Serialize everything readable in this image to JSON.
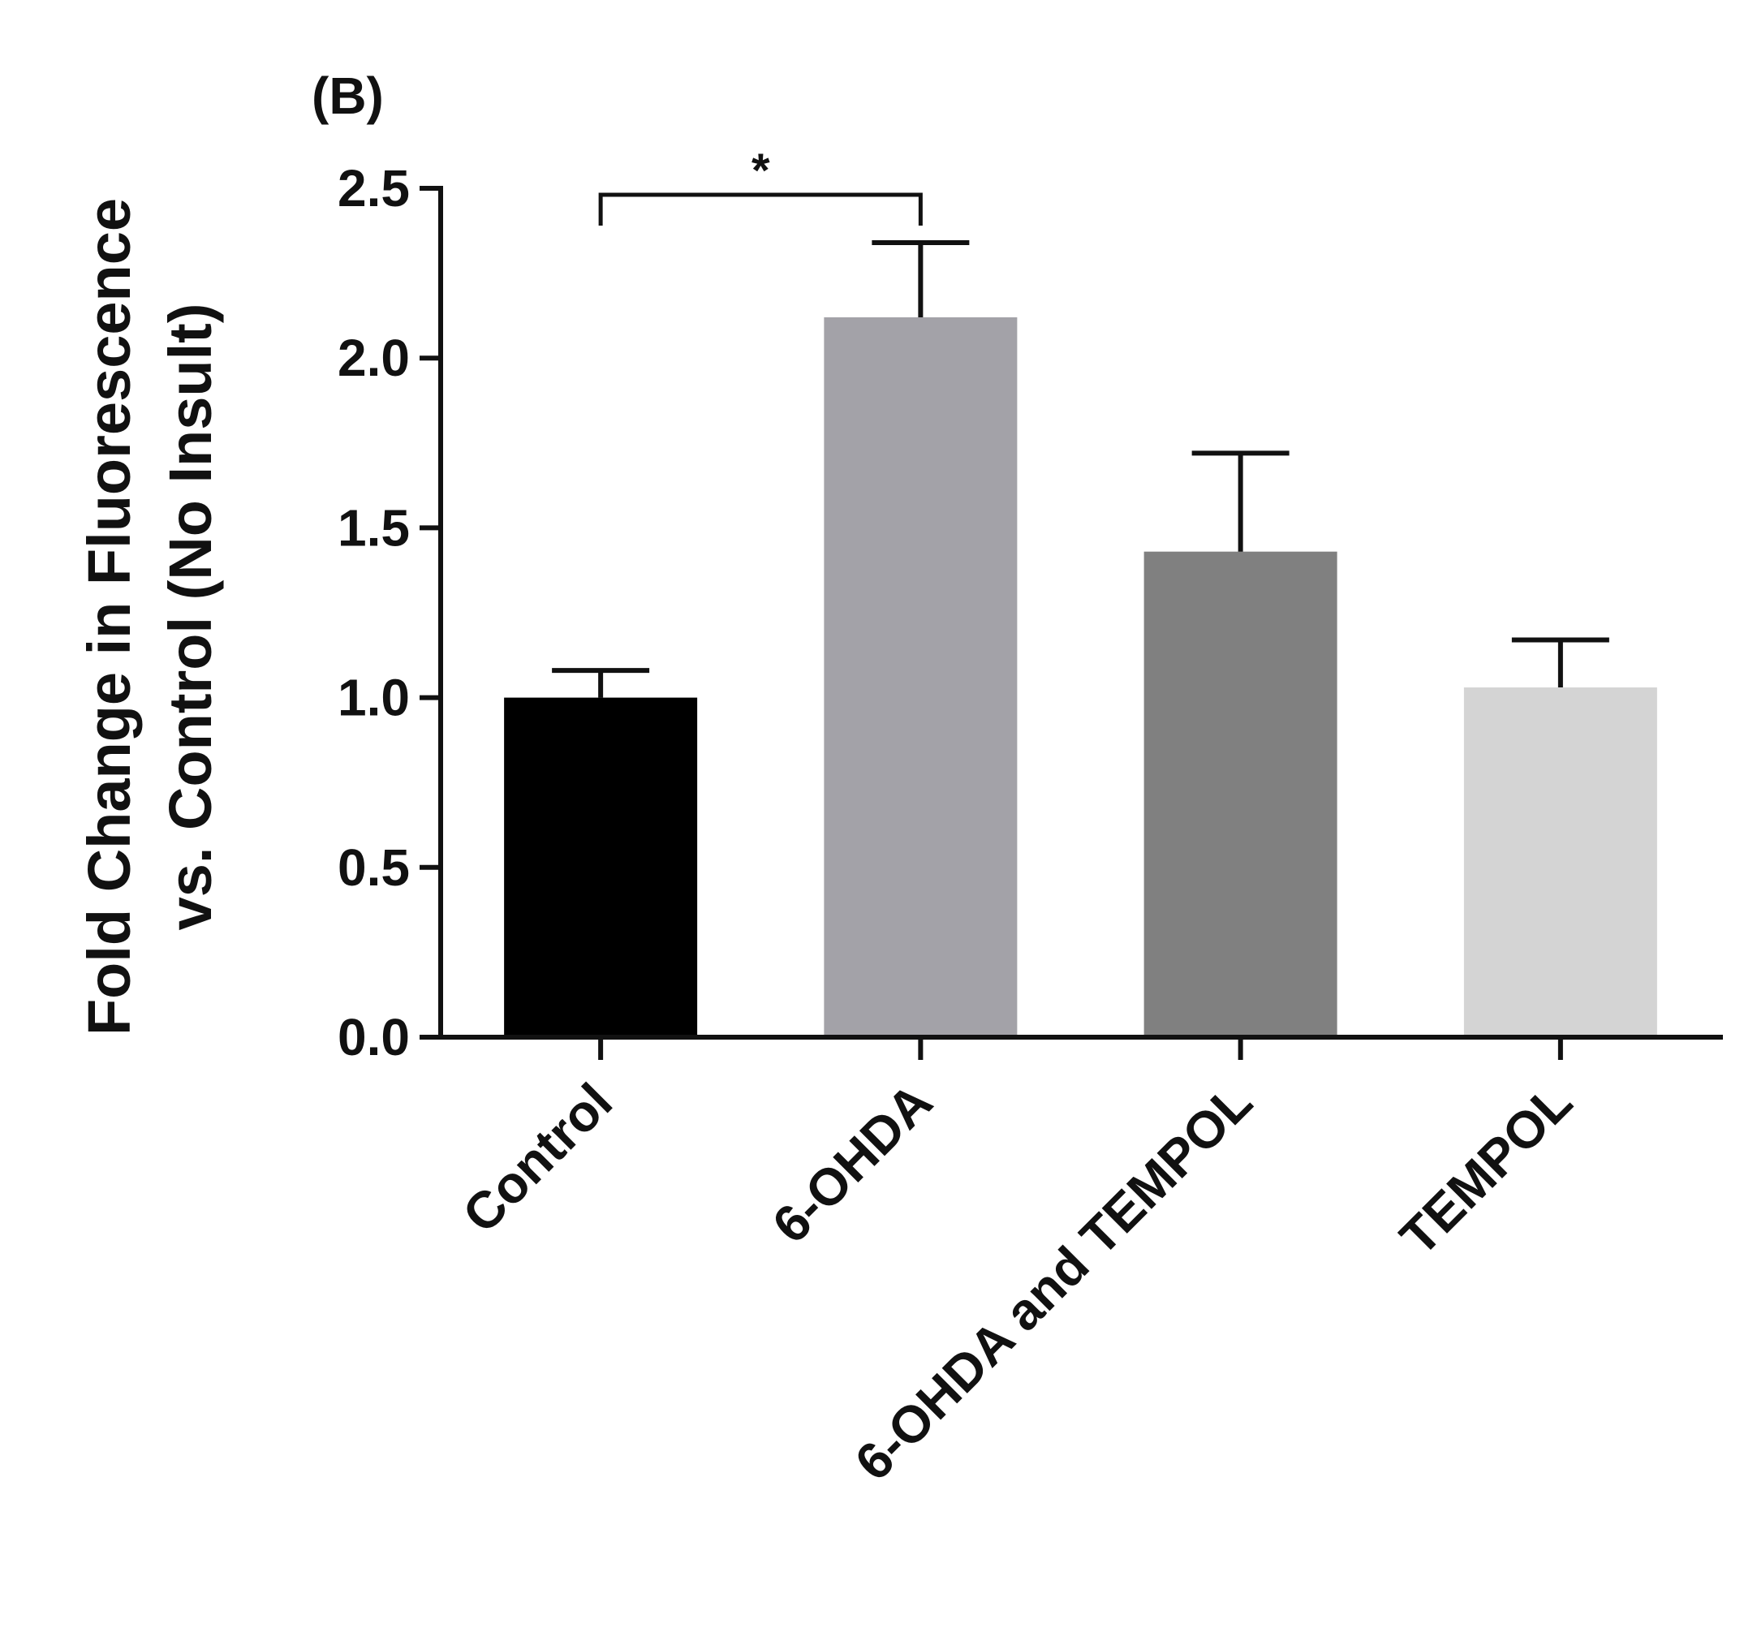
{
  "panel_label": "(B)",
  "chart_data": {
    "type": "bar",
    "categories": [
      "Control",
      "6-OHDA",
      "6-OHDA and TEMPOL",
      "TEMPOL"
    ],
    "values": [
      1.0,
      2.12,
      1.43,
      1.03
    ],
    "errors": [
      0.08,
      0.22,
      0.29,
      0.14
    ],
    "colors": [
      "#000000",
      "#a3a2a8",
      "#808080",
      "#d4d4d4"
    ],
    "title": "",
    "xlabel": "",
    "ylabel_lines": [
      "Fold Change in Fluorescence",
      "vs. Control (No Insult)"
    ],
    "ylim": [
      0,
      2.5
    ],
    "yticks": [
      "0.0",
      "0.5",
      "1.0",
      "1.5",
      "2.0",
      "2.5"
    ],
    "error_bar_direction": "up",
    "grid": false,
    "legend": "none",
    "annotations": [
      {
        "type": "significance_bracket",
        "from": "Control",
        "to": "6-OHDA",
        "label": "*"
      }
    ]
  }
}
